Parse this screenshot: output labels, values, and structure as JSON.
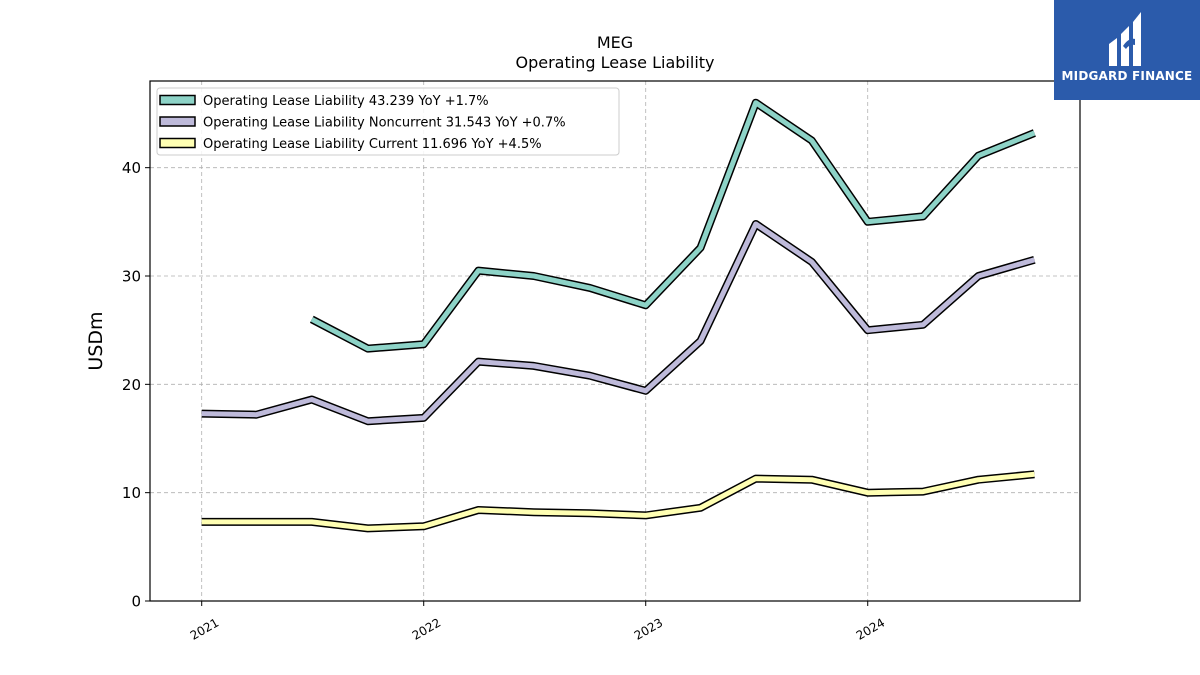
{
  "brand": {
    "name": "MIDGARD FINANCE",
    "logo_icon": "midgard-logo-icon",
    "color": "#2b5bab"
  },
  "chart_data": {
    "type": "line",
    "title": "MEG",
    "subtitle": "Operating Lease Liability",
    "xlabel": "",
    "ylabel": "USDm",
    "x_ticks": [
      "2021",
      "2022",
      "2023",
      "2024"
    ],
    "y_ticks": [
      0,
      10,
      20,
      30,
      40
    ],
    "ylim": [
      0,
      48
    ],
    "xlim": [
      "2020-10-08",
      "2024-12-15"
    ],
    "grid": true,
    "legend_position": "top-left",
    "x": [
      "2021-01-01",
      "2021-04-01",
      "2021-07-01",
      "2021-10-01",
      "2022-01-01",
      "2022-04-01",
      "2022-07-01",
      "2022-10-01",
      "2023-01-01",
      "2023-04-01",
      "2023-07-01",
      "2023-10-01",
      "2024-01-01",
      "2024-04-01",
      "2024-07-01",
      "2024-10-01"
    ],
    "series": [
      {
        "name": "Operating Lease Liability",
        "legend": "Operating Lease Liability  43.239 YoY +1.7%",
        "color": "#8dd3c7",
        "values": [
          null,
          null,
          26.0,
          23.3,
          23.7,
          30.5,
          30.0,
          28.9,
          27.3,
          32.6,
          46.0,
          42.5,
          35.0,
          35.5,
          41.1,
          43.2
        ]
      },
      {
        "name": "Operating Lease Liability Noncurrent",
        "legend": "Operating Lease Liability Noncurrent  31.543 YoY +0.7%",
        "color": "#bebada",
        "values": [
          17.3,
          17.2,
          18.6,
          16.6,
          16.9,
          22.1,
          21.7,
          20.8,
          19.4,
          24.0,
          34.8,
          31.3,
          25.0,
          25.5,
          30.0,
          31.5
        ]
      },
      {
        "name": "Operating Lease Liability Current",
        "legend": "Operating Lease Liability Current  11.696 YoY +4.5%",
        "color": "#ffffb3",
        "values": [
          7.3,
          7.3,
          7.3,
          6.7,
          6.9,
          8.4,
          8.2,
          8.1,
          7.9,
          8.6,
          11.3,
          11.2,
          10.0,
          10.1,
          11.2,
          11.7
        ]
      }
    ]
  }
}
